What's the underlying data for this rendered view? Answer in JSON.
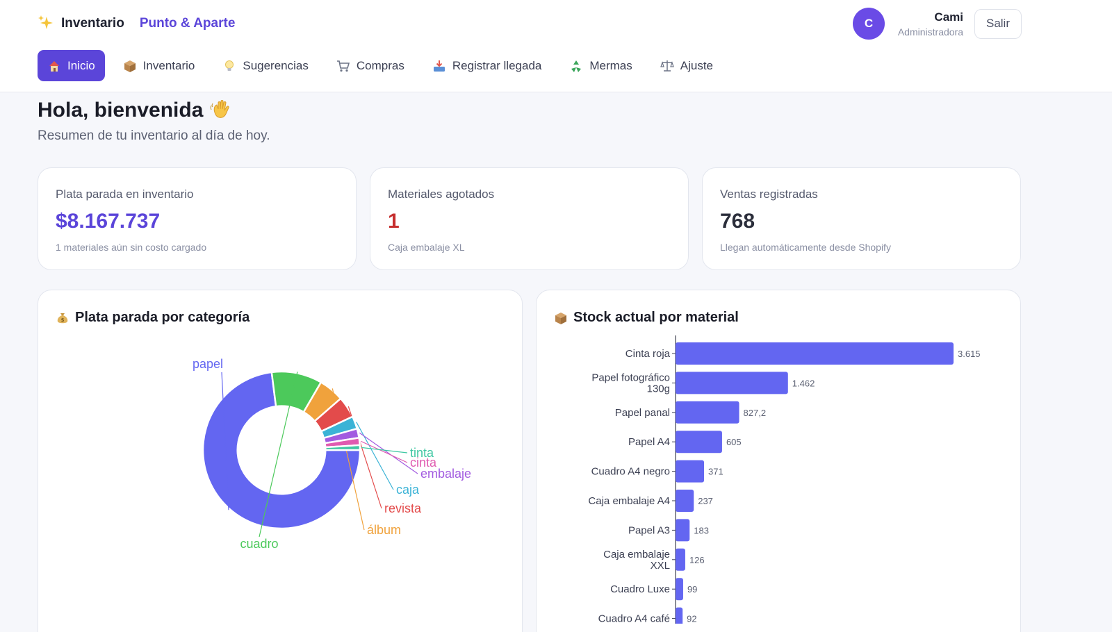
{
  "header": {
    "app_name": "Inventario",
    "store_name": "Punto & Aparte",
    "brand_icon": "sparkles-icon"
  },
  "user": {
    "initial": "C",
    "name": "Cami",
    "role": "Administradora",
    "logout_label": "Salir"
  },
  "nav": {
    "items": [
      {
        "label": "Inicio",
        "icon": "house-icon",
        "active": true
      },
      {
        "label": "Inventario",
        "icon": "box-icon"
      },
      {
        "label": "Sugerencias",
        "icon": "lightbulb-icon"
      },
      {
        "label": "Compras",
        "icon": "cart-icon"
      },
      {
        "label": "Registrar llegada",
        "icon": "inbox-tray-icon"
      },
      {
        "label": "Mermas",
        "icon": "recycle-icon"
      },
      {
        "label": "Ajuste",
        "icon": "scale-icon"
      }
    ]
  },
  "greeting": {
    "title": "Hola, bienvenida",
    "icon": "waving-hand-icon",
    "subtitle": "Resumen de tu inventario al día de hoy."
  },
  "kpis": [
    {
      "label": "Plata parada en inventario",
      "value": "$8.167.737",
      "note": "1 materiales aún sin costo cargado",
      "color": "#5b45d9"
    },
    {
      "label": "Materiales agotados",
      "value": "1",
      "note": "Caja embalaje XL",
      "color": "#c62f2f"
    },
    {
      "label": "Ventas registradas",
      "value": "768",
      "note": "Llegan automáticamente desde Shopify",
      "color": "#2b2e3b"
    }
  ],
  "charts": {
    "donut_title": "Plata parada por categoría",
    "donut_icon": "money-bag-icon",
    "bar_title": "Stock actual por material",
    "bar_icon": "box-icon"
  },
  "chart_data": [
    {
      "type": "pie",
      "title": "Plata parada por categoría",
      "hole": 0.56,
      "labels": [
        "papel",
        "cuadro",
        "álbum",
        "revista",
        "caja",
        "embalaje",
        "cinta",
        "tinta"
      ],
      "values": [
        73.0,
        10.4,
        5.2,
        4.4,
        2.6,
        1.9,
        1.5,
        1.0
      ],
      "colors": [
        "#6366f1",
        "#4cc95b",
        "#f0a23c",
        "#e34b4b",
        "#3bb3d6",
        "#a25be0",
        "#e05bb0",
        "#3fc7a3"
      ]
    },
    {
      "type": "bar",
      "orientation": "horizontal",
      "title": "Stock actual por material",
      "categories": [
        "Cinta roja",
        "Papel fotográfico 130g",
        "Papel panal",
        "Papel A4",
        "Cuadro A4 negro",
        "Caja embalaje A4",
        "Papel A3",
        "Caja embalaje XXL",
        "Cuadro Luxe",
        "Cuadro A4 café"
      ],
      "category_lines": [
        [
          "Cinta roja"
        ],
        [
          "Papel fotográfico",
          "130g"
        ],
        [
          "Papel panal"
        ],
        [
          "Papel A4"
        ],
        [
          "Cuadro A4 negro"
        ],
        [
          "Caja embalaje A4"
        ],
        [
          "Papel A3"
        ],
        [
          "Caja embalaje",
          "XXL"
        ],
        [
          "Cuadro Luxe"
        ],
        [
          "Cuadro A4 café"
        ]
      ],
      "values": [
        3615,
        1462,
        827.2,
        605,
        371,
        237,
        183,
        126,
        99,
        92
      ],
      "value_labels": [
        "3.615",
        "1.462",
        "827,2",
        "605",
        "371",
        "237",
        "183",
        "126",
        "99",
        "92"
      ],
      "color": "#6366f1"
    }
  ]
}
